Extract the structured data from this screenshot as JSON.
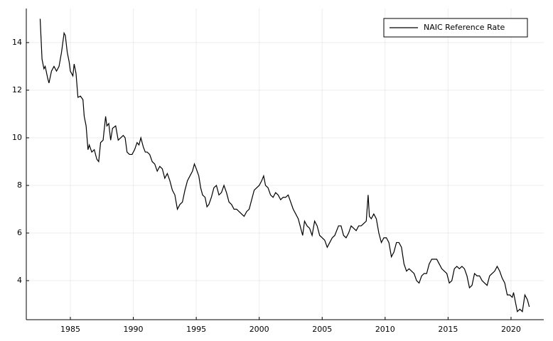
{
  "chart_data": {
    "type": "line",
    "x": [
      1982.6,
      1982.75,
      1982.9,
      1983.0,
      1983.2,
      1983.3,
      1983.5,
      1983.7,
      1983.9,
      1984.1,
      1984.3,
      1984.5,
      1984.6,
      1984.75,
      1984.9,
      1985.0,
      1985.2,
      1985.3,
      1985.45,
      1985.6,
      1985.8,
      1986.0,
      1986.1,
      1986.25,
      1986.4,
      1986.5,
      1986.7,
      1986.9,
      1987.1,
      1987.25,
      1987.4,
      1987.6,
      1987.8,
      1987.9,
      1988.05,
      1988.2,
      1988.35,
      1988.6,
      1988.8,
      1989.0,
      1989.2,
      1989.35,
      1989.5,
      1989.7,
      1989.9,
      1990.1,
      1990.3,
      1990.45,
      1990.6,
      1990.8,
      1990.95,
      1991.1,
      1991.3,
      1991.5,
      1991.7,
      1991.9,
      1992.1,
      1992.3,
      1992.5,
      1992.7,
      1992.9,
      1993.1,
      1993.3,
      1993.5,
      1993.7,
      1993.9,
      1994.1,
      1994.3,
      1994.5,
      1994.7,
      1994.85,
      1995.0,
      1995.2,
      1995.35,
      1995.5,
      1995.7,
      1995.85,
      1996.0,
      1996.2,
      1996.4,
      1996.6,
      1996.8,
      1997.0,
      1997.2,
      1997.4,
      1997.6,
      1997.8,
      1998.0,
      1998.2,
      1998.4,
      1998.6,
      1998.8,
      1999.0,
      1999.2,
      1999.4,
      1999.6,
      1999.8,
      2000.0,
      2000.2,
      2000.35,
      2000.5,
      2000.7,
      2000.9,
      2001.1,
      2001.3,
      2001.5,
      2001.7,
      2001.9,
      2002.1,
      2002.3,
      2002.5,
      2002.7,
      2002.9,
      2003.1,
      2003.3,
      2003.45,
      2003.6,
      2003.8,
      2004.0,
      2004.2,
      2004.4,
      2004.6,
      2004.8,
      2005.0,
      2005.2,
      2005.4,
      2005.6,
      2005.8,
      2006.0,
      2006.3,
      2006.5,
      2006.7,
      2006.9,
      2007.1,
      2007.3,
      2007.5,
      2007.7,
      2007.9,
      2008.1,
      2008.3,
      2008.5,
      2008.65,
      2008.75,
      2008.9,
      2009.1,
      2009.3,
      2009.5,
      2009.7,
      2009.9,
      2010.1,
      2010.3,
      2010.5,
      2010.7,
      2010.9,
      2011.1,
      2011.3,
      2011.5,
      2011.7,
      2011.9,
      2012.1,
      2012.3,
      2012.5,
      2012.7,
      2012.9,
      2013.1,
      2013.3,
      2013.5,
      2013.7,
      2013.9,
      2014.1,
      2014.3,
      2014.5,
      2014.7,
      2014.9,
      2015.1,
      2015.3,
      2015.5,
      2015.7,
      2015.9,
      2016.1,
      2016.3,
      2016.5,
      2016.7,
      2016.9,
      2017.1,
      2017.3,
      2017.5,
      2017.7,
      2017.9,
      2018.1,
      2018.3,
      2018.5,
      2018.7,
      2018.9,
      2019.1,
      2019.3,
      2019.5,
      2019.7,
      2019.9,
      2020.1,
      2020.2,
      2020.35,
      2020.5,
      2020.7,
      2020.9,
      2021.1,
      2021.3,
      2021.45
    ],
    "series": [
      {
        "name": "NAIC Reference Rate",
        "color": "#000000",
        "values": [
          15.0,
          13.3,
          12.9,
          13.0,
          12.5,
          12.3,
          12.8,
          13.0,
          12.8,
          13.0,
          13.6,
          14.4,
          14.3,
          13.6,
          13.2,
          12.8,
          12.6,
          13.1,
          12.7,
          11.7,
          11.75,
          11.6,
          10.9,
          10.5,
          9.5,
          9.7,
          9.4,
          9.5,
          9.1,
          9.0,
          9.8,
          9.9,
          10.9,
          10.5,
          10.6,
          9.9,
          10.4,
          10.5,
          9.9,
          10.0,
          10.1,
          10.0,
          9.4,
          9.3,
          9.3,
          9.5,
          9.8,
          9.7,
          10.0,
          9.6,
          9.4,
          9.4,
          9.3,
          9.0,
          8.9,
          8.6,
          8.8,
          8.7,
          8.3,
          8.5,
          8.2,
          7.8,
          7.6,
          7.0,
          7.2,
          7.3,
          7.8,
          8.2,
          8.4,
          8.6,
          8.9,
          8.7,
          8.4,
          7.9,
          7.6,
          7.5,
          7.1,
          7.2,
          7.5,
          7.9,
          8.0,
          7.6,
          7.7,
          8.0,
          7.7,
          7.3,
          7.2,
          7.0,
          7.0,
          6.9,
          6.8,
          6.7,
          6.9,
          7.0,
          7.4,
          7.8,
          7.9,
          8.0,
          8.2,
          8.4,
          8.0,
          7.9,
          7.6,
          7.5,
          7.7,
          7.6,
          7.4,
          7.5,
          7.5,
          7.6,
          7.3,
          7.0,
          6.8,
          6.6,
          6.2,
          5.9,
          6.5,
          6.3,
          6.2,
          5.9,
          6.5,
          6.3,
          5.9,
          5.8,
          5.7,
          5.4,
          5.6,
          5.8,
          5.9,
          6.3,
          6.3,
          5.9,
          5.8,
          6.0,
          6.3,
          6.2,
          6.1,
          6.3,
          6.3,
          6.4,
          6.5,
          7.6,
          6.7,
          6.6,
          6.8,
          6.6,
          6.0,
          5.6,
          5.8,
          5.8,
          5.6,
          5.0,
          5.2,
          5.6,
          5.6,
          5.4,
          4.7,
          4.4,
          4.5,
          4.4,
          4.3,
          4.0,
          3.9,
          4.2,
          4.3,
          4.3,
          4.7,
          4.9,
          4.9,
          4.9,
          4.7,
          4.5,
          4.4,
          4.3,
          3.9,
          4.0,
          4.5,
          4.6,
          4.5,
          4.6,
          4.5,
          4.2,
          3.7,
          3.8,
          4.3,
          4.2,
          4.2,
          4.0,
          3.9,
          3.8,
          4.2,
          4.3,
          4.4,
          4.6,
          4.4,
          4.1,
          3.9,
          3.4,
          3.4,
          3.3,
          3.5,
          3.1,
          2.7,
          2.8,
          2.7,
          3.4,
          3.2,
          2.9
        ]
      }
    ],
    "xlim": [
      1981.5,
      2022.6
    ],
    "ylim": [
      2.36,
      15.43
    ],
    "xticks": [
      1985,
      1990,
      1995,
      2000,
      2005,
      2010,
      2015,
      2020
    ],
    "yticks": [
      4,
      6,
      8,
      10,
      12,
      14
    ],
    "grid": true,
    "legend": "top-right"
  }
}
